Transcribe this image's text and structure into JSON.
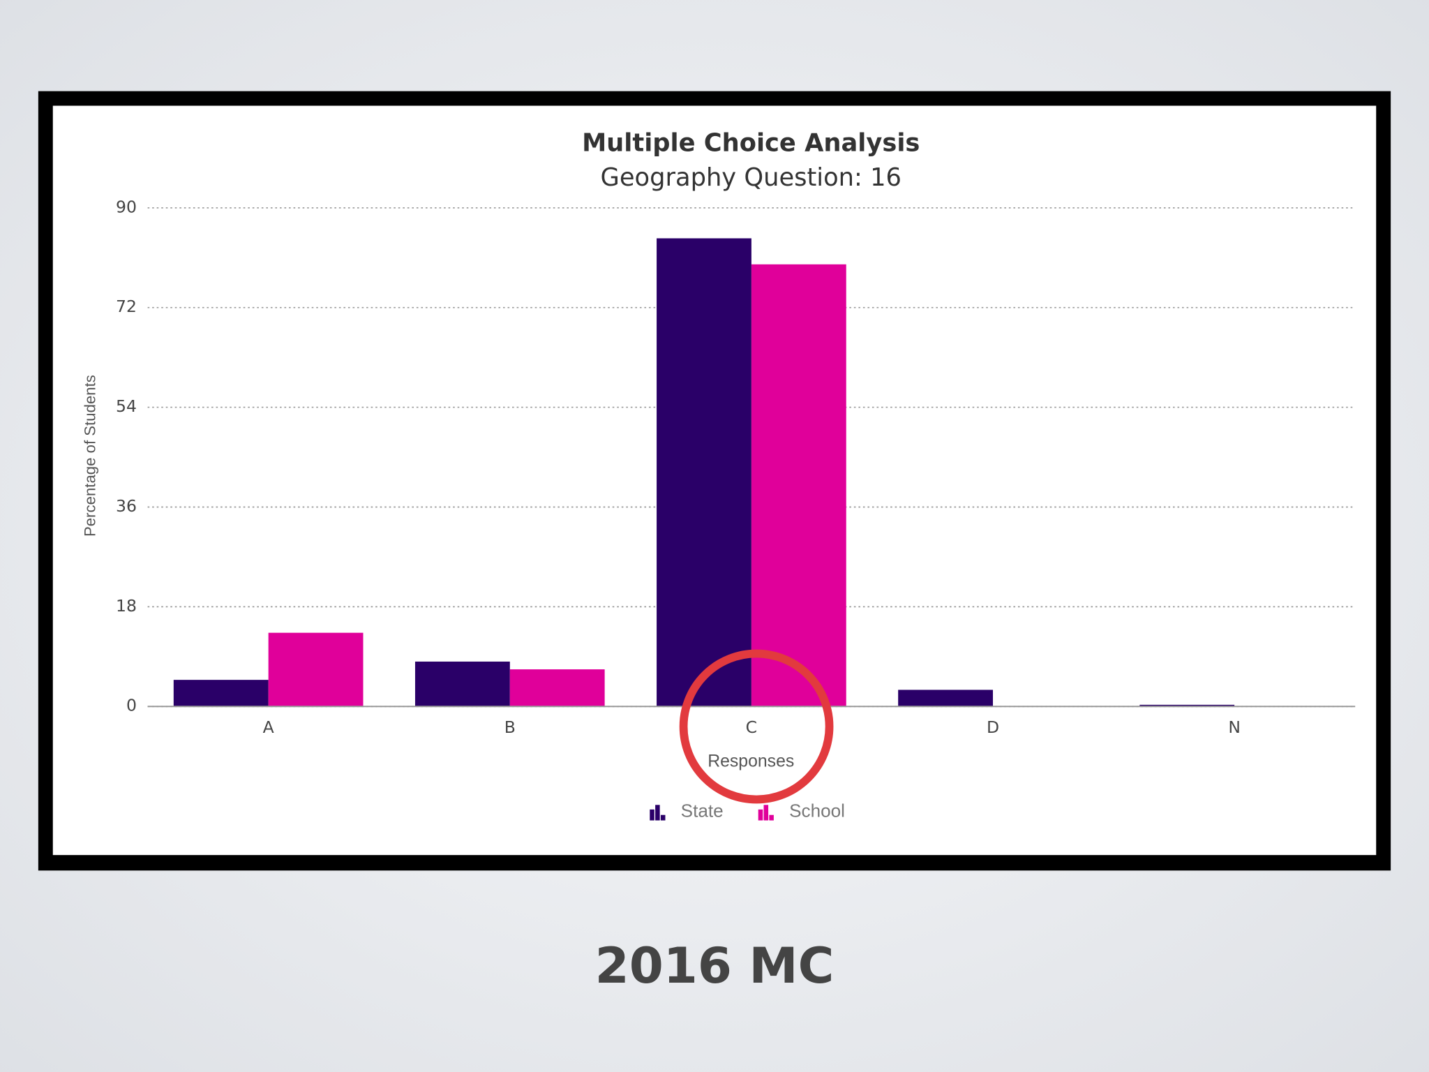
{
  "chart_data": {
    "type": "bar",
    "title": "Multiple Choice Analysis",
    "subtitle": "Geography Question: 16",
    "x_label": "Responses",
    "y_label": "Percentage of Students",
    "categories": [
      "A",
      "B",
      "C",
      "D",
      "N"
    ],
    "series": [
      {
        "name": "State",
        "color": "#2a0068",
        "values": [
          4.8,
          8.1,
          84.5,
          3.0,
          0.3
        ]
      },
      {
        "name": "School",
        "color": "#e0009a",
        "values": [
          13.3,
          6.7,
          79.8,
          0,
          0
        ]
      }
    ],
    "ylim": [
      0,
      90
    ],
    "yticks": [
      0,
      18,
      36,
      54,
      72,
      90
    ],
    "grid": true
  },
  "caption": "2016 MC"
}
